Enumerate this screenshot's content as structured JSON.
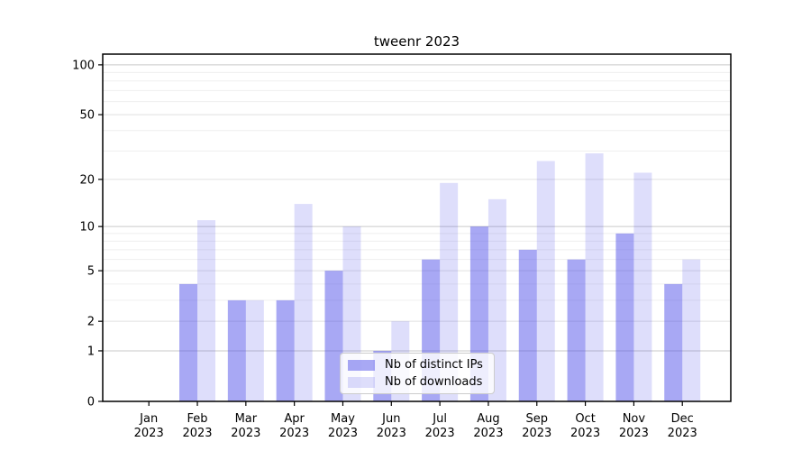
{
  "title": "tweenr 2023",
  "chart_data": {
    "type": "bar",
    "title": "tweenr 2023",
    "xlabel": "",
    "ylabel": "",
    "months": [
      "Jan",
      "Feb",
      "Mar",
      "Apr",
      "May",
      "Jun",
      "Jul",
      "Aug",
      "Sep",
      "Oct",
      "Nov",
      "Dec"
    ],
    "year_label": "2023",
    "series": [
      {
        "name": "Nb of distinct IPs",
        "color": "rgba(74,74,232,0.48)",
        "values": [
          0,
          4,
          3,
          3,
          5,
          1,
          6,
          10,
          7,
          6,
          9,
          4
        ]
      },
      {
        "name": "Nb of downloads",
        "color": "rgba(74,74,232,0.18)",
        "values": [
          0,
          11,
          3,
          14,
          10,
          2,
          19,
          15,
          26,
          29,
          22,
          6
        ]
      }
    ],
    "y_ticks": [
      0,
      1,
      2,
      5,
      10,
      20,
      50,
      100
    ],
    "y_scale": "log1p",
    "ylim": [
      0,
      116
    ],
    "grid_on": true,
    "grid_tiers": [
      {
        "values": [
          3,
          4,
          6,
          7,
          8,
          9,
          30,
          40,
          60,
          70,
          80,
          90
        ],
        "color": "#efefef"
      },
      {
        "values": [
          2,
          5,
          20,
          50
        ],
        "color": "#e1e1e1"
      },
      {
        "values": [
          1,
          10,
          100
        ],
        "color": "#c9c9c9"
      }
    ],
    "legend_position": "bottom-center",
    "axis_color": "#000000"
  }
}
